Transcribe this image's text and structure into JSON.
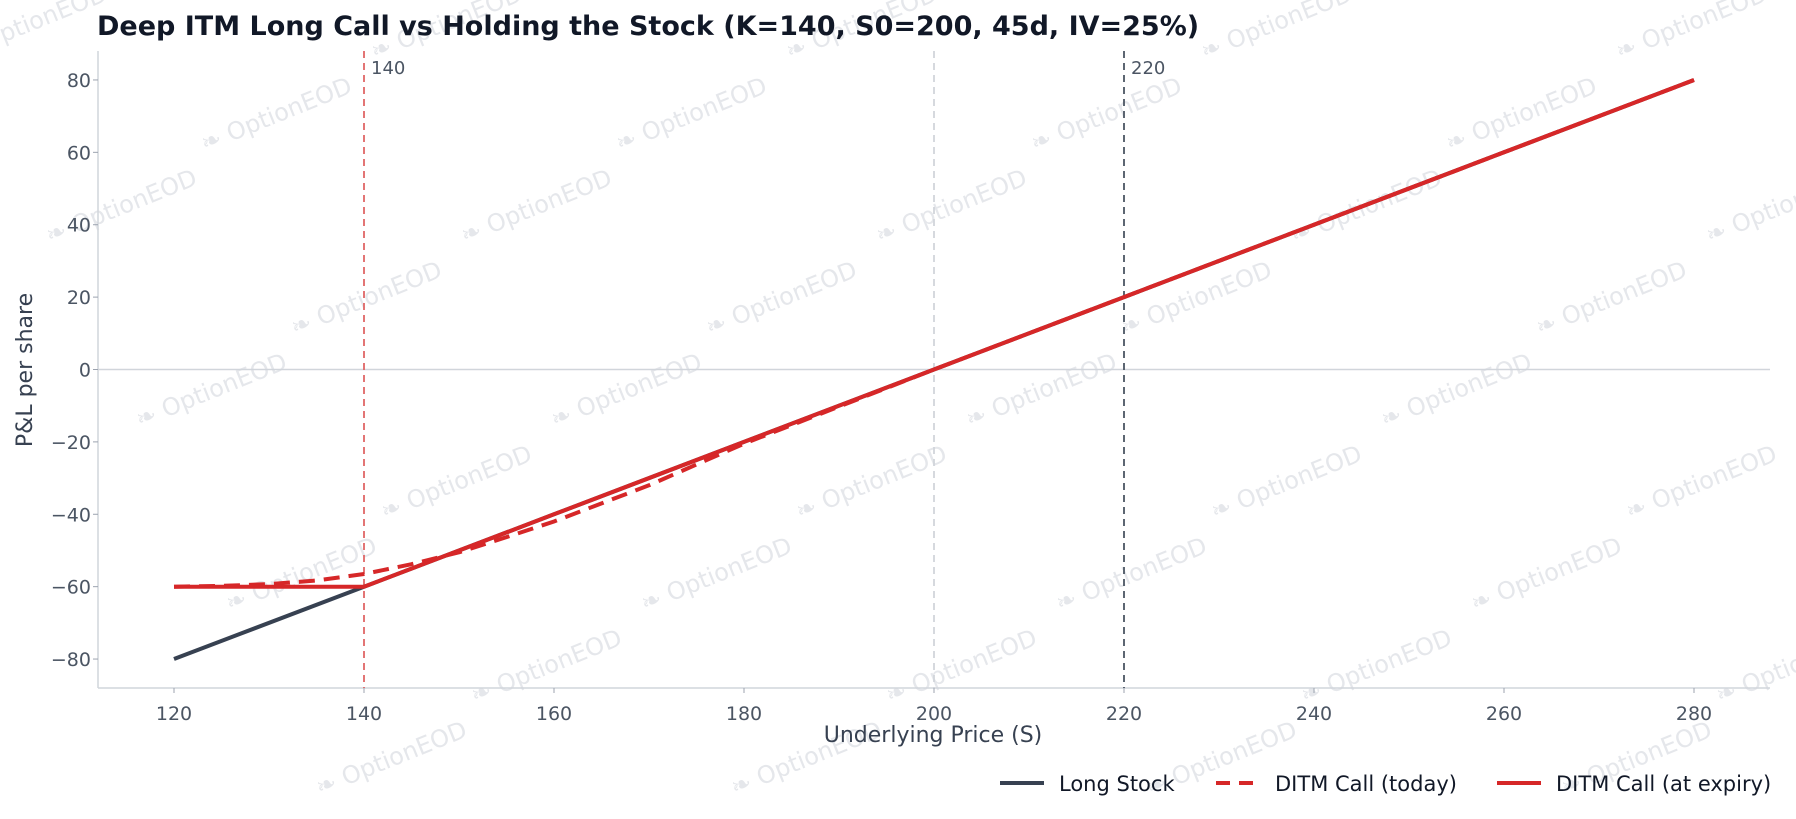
{
  "chart_data": {
    "type": "line",
    "title": "Deep ITM Long Call vs Holding the Stock (K=140, S0=200, 45d, IV=25%)",
    "xlabel": "Underlying Price (S)",
    "ylabel": "P&L per share",
    "xlim": [
      112,
      288
    ],
    "ylim": [
      -88,
      88
    ],
    "xticks": [
      120,
      140,
      160,
      180,
      200,
      220,
      240,
      260,
      280
    ],
    "yticks": [
      -80,
      -60,
      -40,
      -20,
      0,
      20,
      40,
      60,
      80
    ],
    "grid": false,
    "legend": "bottom-right",
    "watermark": "OptionEOD",
    "reference_lines": [
      {
        "x": 140,
        "label": "140",
        "color": "#e06666",
        "style": "dashed"
      },
      {
        "x": 200,
        "label": "",
        "color": "#d1d5db",
        "style": "dashed"
      },
      {
        "x": 220,
        "label": "220",
        "color": "#4b5563",
        "style": "dashed"
      }
    ],
    "zero_line": {
      "y": 0,
      "color": "#d1d5db"
    },
    "series": [
      {
        "name": "Long Stock",
        "color": "#374151",
        "style": "solid",
        "x": [
          120,
          140,
          160,
          180,
          200,
          220,
          240,
          260,
          280
        ],
        "y": [
          -80,
          -60,
          -40,
          -20,
          0,
          20,
          40,
          60,
          80
        ]
      },
      {
        "name": "DITM Call (today)",
        "color": "#d62728",
        "style": "dashed",
        "x": [
          120,
          125,
          130,
          135,
          140,
          145,
          150,
          155,
          160,
          170,
          180,
          200,
          220,
          240,
          260,
          280
        ],
        "y": [
          -60,
          -59.8,
          -59.3,
          -58.3,
          -56.5,
          -53.8,
          -50.5,
          -46.3,
          -42,
          -32,
          -20.5,
          0,
          20,
          40,
          60,
          80
        ]
      },
      {
        "name": "DITM Call (at expiry)",
        "color": "#d62728",
        "style": "solid",
        "x": [
          120,
          140,
          160,
          180,
          200,
          220,
          240,
          260,
          280
        ],
        "y": [
          -60,
          -60,
          -40,
          -20,
          0,
          20,
          40,
          60,
          80
        ]
      }
    ]
  }
}
